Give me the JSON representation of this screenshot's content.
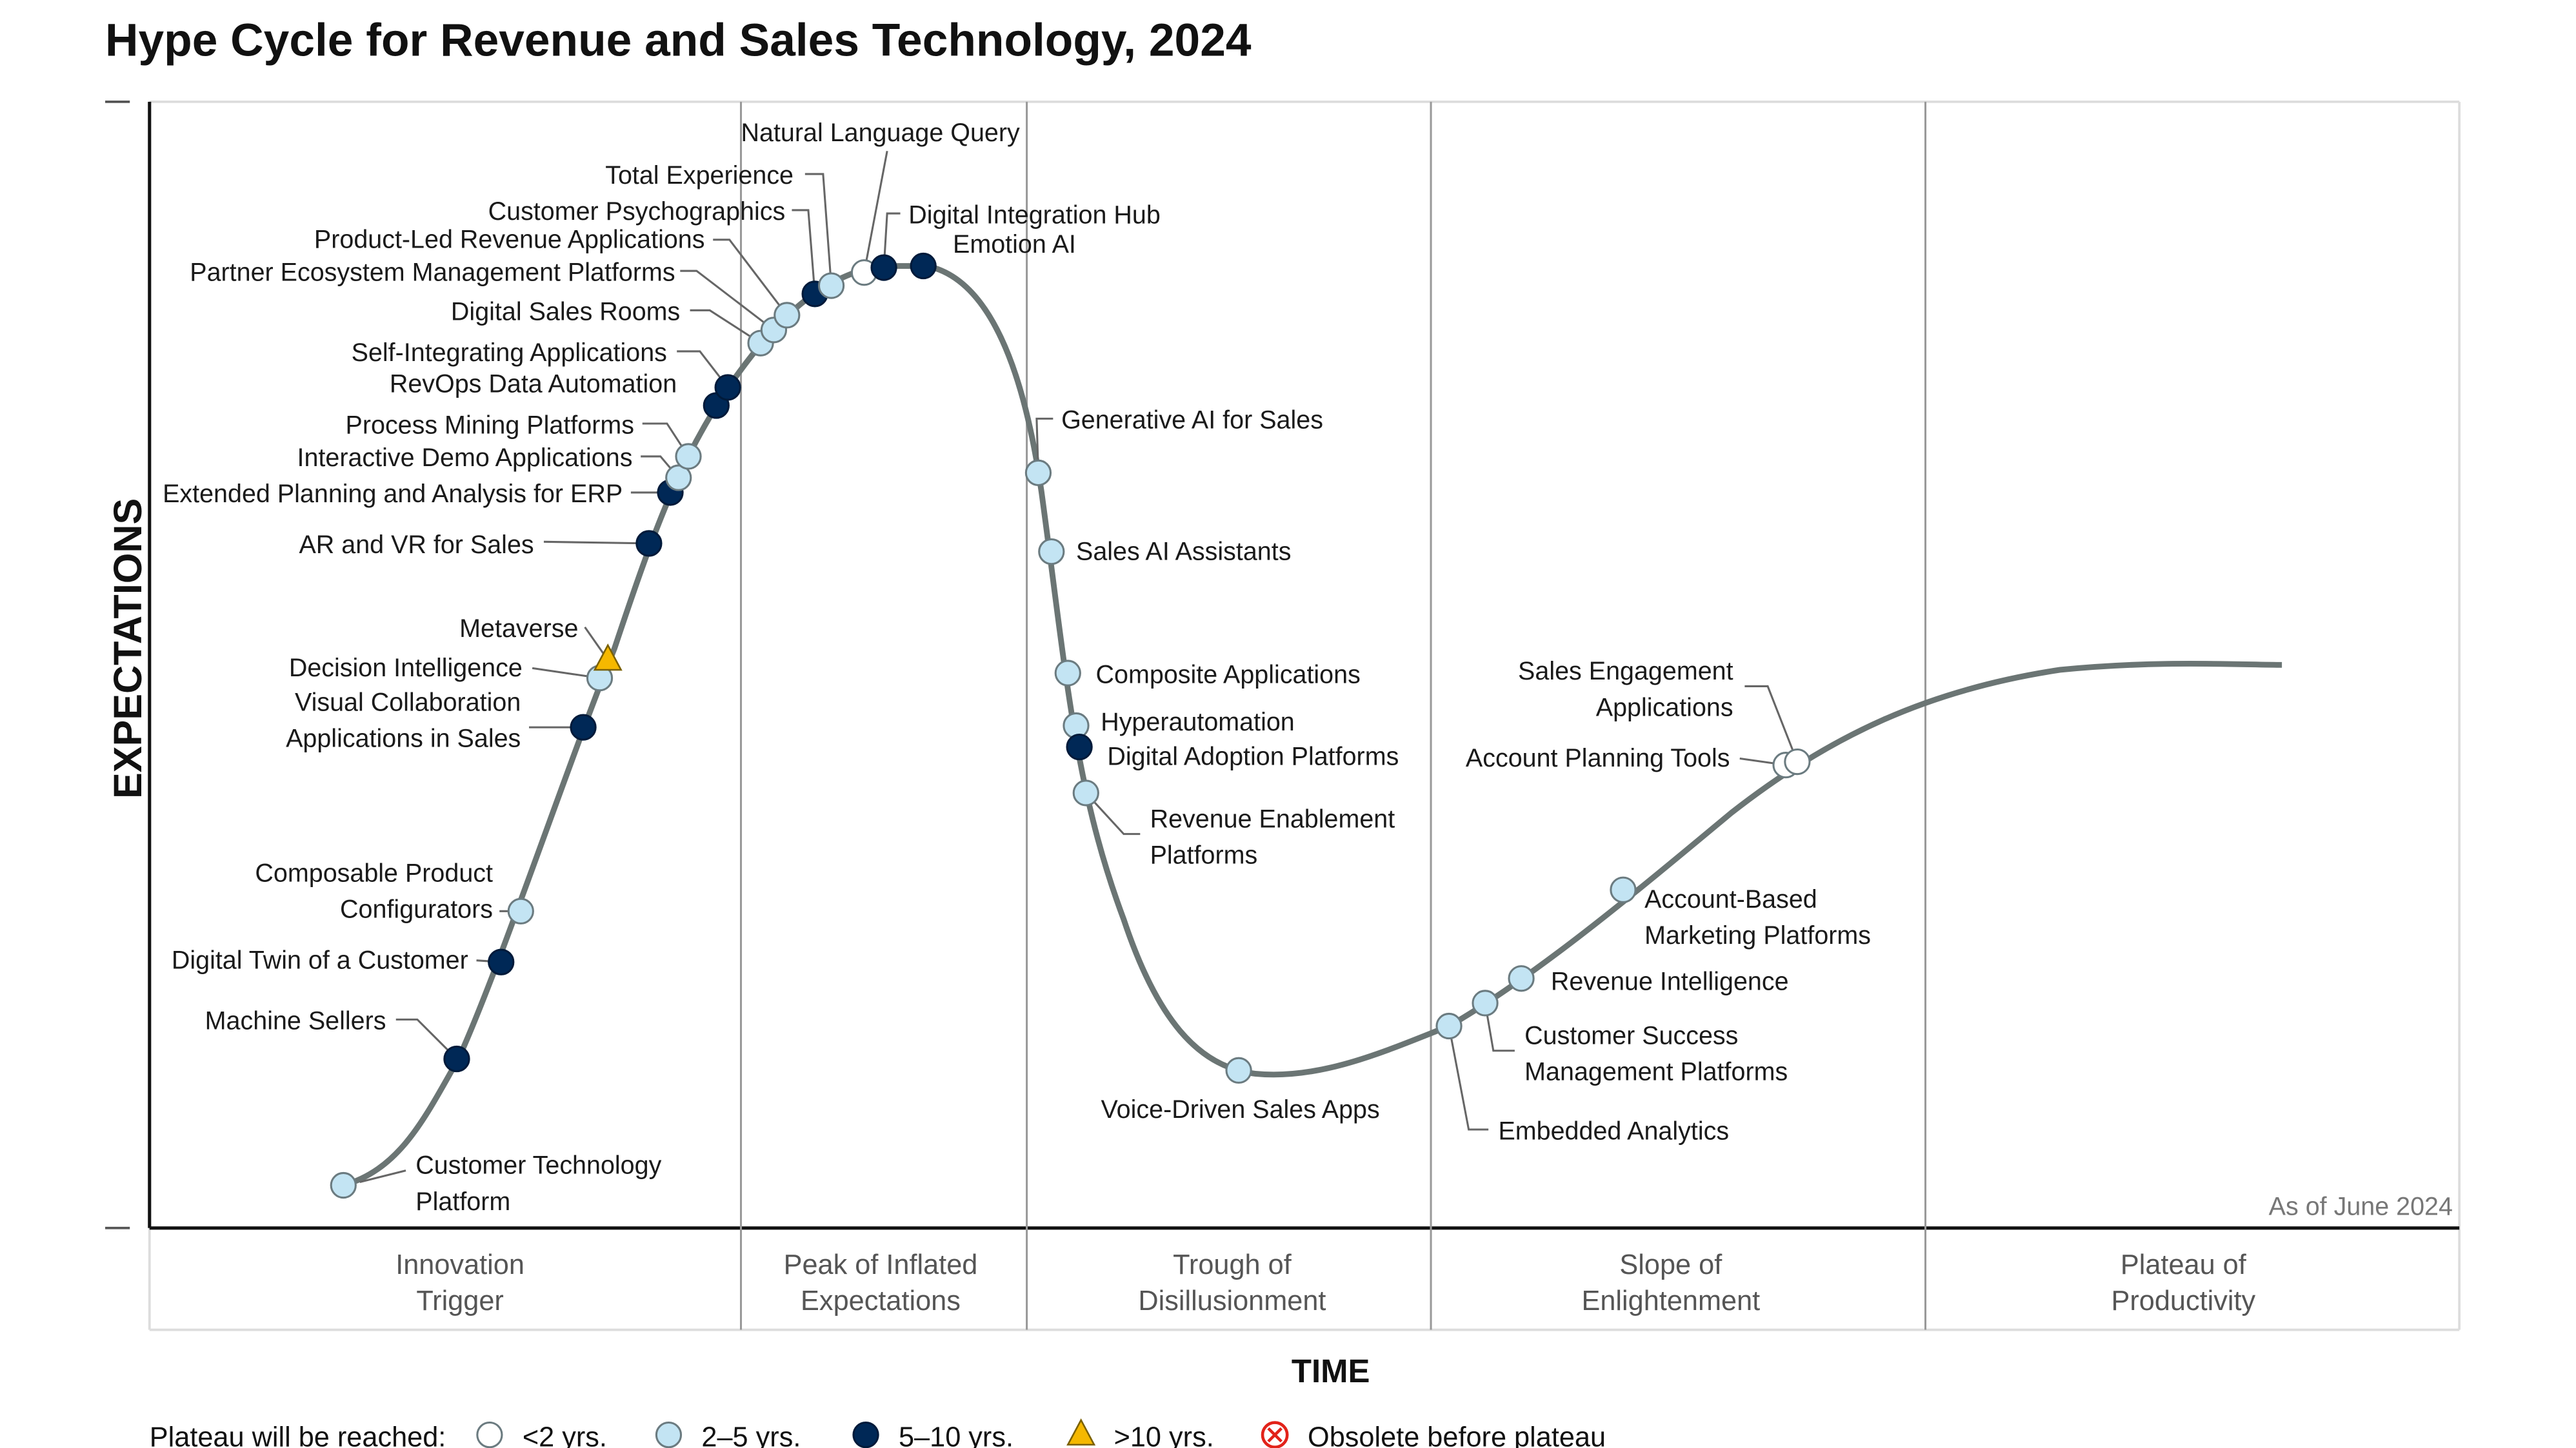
{
  "title": "Hype Cycle for Revenue and Sales Technology, 2024",
  "y_axis_label": "EXPECTATIONS",
  "x_axis_label": "TIME",
  "as_of": "As of June 2024",
  "phases": [
    [
      "Innovation",
      "Trigger"
    ],
    [
      "Peak of Inflated",
      "Expectations"
    ],
    [
      "Trough of",
      "Disillusionment"
    ],
    [
      "Slope of",
      "Enlightenment"
    ],
    [
      "Plateau of",
      "Productivity"
    ]
  ],
  "legend": {
    "title": "Plateau will be reached:",
    "items": [
      {
        "key": "lt2",
        "label": "<2 yrs.",
        "color": "#ffffff"
      },
      {
        "key": "2to5",
        "label": "2–5 yrs.",
        "color": "#c3e4f3"
      },
      {
        "key": "5to10",
        "label": "5–10 yrs.",
        "color": "#002856"
      },
      {
        "key": "gt10",
        "label": ">10 yrs.",
        "color": "#f5b800"
      },
      {
        "key": "obsolete",
        "label": "Obsolete before plateau",
        "color": "#e2231a"
      }
    ]
  },
  "technologies": [
    {
      "name": [
        "Customer Technology",
        "Platform"
      ],
      "plateau": "2to5"
    },
    {
      "name": [
        "Machine Sellers"
      ],
      "plateau": "5to10"
    },
    {
      "name": [
        "Digital Twin of a Customer"
      ],
      "plateau": "5to10"
    },
    {
      "name": [
        "Composable Product",
        "Configurators"
      ],
      "plateau": "2to5"
    },
    {
      "name": [
        "Visual Collaboration",
        "Applications in Sales"
      ],
      "plateau": "5to10"
    },
    {
      "name": [
        "Decision Intelligence"
      ],
      "plateau": "2to5"
    },
    {
      "name": [
        "Metaverse"
      ],
      "plateau": "gt10"
    },
    {
      "name": [
        "AR and VR for Sales"
      ],
      "plateau": "5to10"
    },
    {
      "name": [
        "Extended Planning and Analysis for ERP"
      ],
      "plateau": "5to10"
    },
    {
      "name": [
        "Interactive Demo Applications"
      ],
      "plateau": "2to5"
    },
    {
      "name": [
        "Process Mining Platforms"
      ],
      "plateau": "2to5"
    },
    {
      "name": [
        "RevOps Data Automation"
      ],
      "plateau": "5to10"
    },
    {
      "name": [
        "Self-Integrating Applications"
      ],
      "plateau": "5to10"
    },
    {
      "name": [
        "Digital Sales Rooms"
      ],
      "plateau": "2to5"
    },
    {
      "name": [
        "Partner Ecosystem Management Platforms"
      ],
      "plateau": "2to5"
    },
    {
      "name": [
        "Product-Led Revenue Applications"
      ],
      "plateau": "2to5"
    },
    {
      "name": [
        "Customer Psychographics"
      ],
      "plateau": "5to10"
    },
    {
      "name": [
        "Total Experience"
      ],
      "plateau": "2to5"
    },
    {
      "name": [
        "Natural Language Query"
      ],
      "plateau": "lt2"
    },
    {
      "name": [
        "Digital Integration Hub"
      ],
      "plateau": "5to10"
    },
    {
      "name": [
        "Emotion AI"
      ],
      "plateau": "5to10"
    },
    {
      "name": [
        "Generative AI for Sales"
      ],
      "plateau": "2to5"
    },
    {
      "name": [
        "Sales AI Assistants"
      ],
      "plateau": "2to5"
    },
    {
      "name": [
        "Composite Applications"
      ],
      "plateau": "2to5"
    },
    {
      "name": [
        "Hyperautomation"
      ],
      "plateau": "2to5"
    },
    {
      "name": [
        "Digital Adoption Platforms"
      ],
      "plateau": "5to10"
    },
    {
      "name": [
        "Revenue Enablement",
        "Platforms"
      ],
      "plateau": "2to5"
    },
    {
      "name": [
        "Voice-Driven Sales Apps"
      ],
      "plateau": "2to5"
    },
    {
      "name": [
        "Embedded Analytics"
      ],
      "plateau": "2to5"
    },
    {
      "name": [
        "Customer Success",
        "Management Platforms"
      ],
      "plateau": "2to5"
    },
    {
      "name": [
        "Revenue Intelligence"
      ],
      "plateau": "2to5"
    },
    {
      "name": [
        "Account-Based",
        "Marketing Platforms"
      ],
      "plateau": "2to5"
    },
    {
      "name": [
        "Account Planning Tools"
      ],
      "plateau": "lt2"
    },
    {
      "name": [
        "Sales Engagement",
        "Applications"
      ],
      "plateau": "lt2"
    }
  ]
}
